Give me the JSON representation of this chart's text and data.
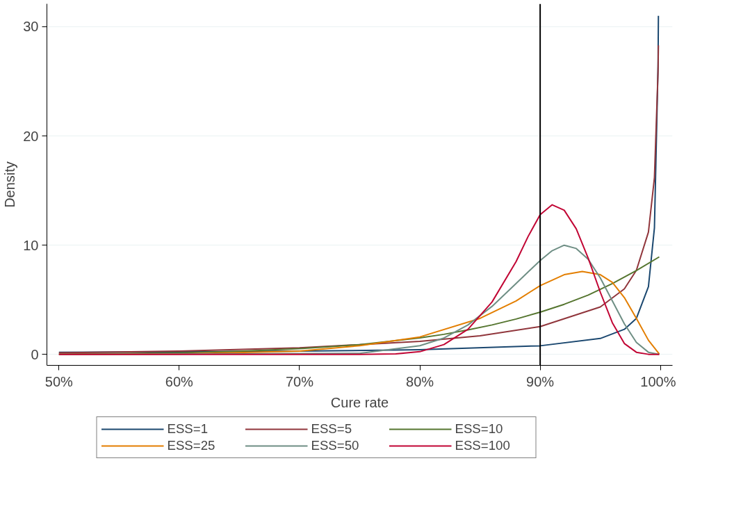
{
  "chart_data": {
    "type": "line",
    "xlabel": "Cure rate",
    "ylabel": "Density",
    "xlim": [
      0.49,
      1.01
    ],
    "ylim": [
      -1,
      32.1
    ],
    "xticks": [
      {
        "value": 0.5,
        "label": "50%"
      },
      {
        "value": 0.6,
        "label": "60%"
      },
      {
        "value": 0.7,
        "label": "70%"
      },
      {
        "value": 0.8,
        "label": "80%"
      },
      {
        "value": 0.9,
        "label": "90%"
      },
      {
        "value": 1.0,
        "label": "100%"
      }
    ],
    "yticks": [
      0,
      10,
      20,
      30
    ],
    "grid": "y",
    "legend": "bottom",
    "ref_lines": [
      {
        "axis": "x",
        "value": 0.9,
        "color": "#000000"
      }
    ],
    "series": [
      {
        "name": "ESS=1",
        "color": "#1a476f",
        "x": [
          0.5,
          0.6,
          0.7,
          0.8,
          0.9,
          0.95,
          0.97,
          0.98,
          0.99,
          0.995,
          0.998,
          0.9983
        ],
        "values": [
          0.2,
          0.24,
          0.3,
          0.43,
          0.79,
          1.46,
          2.3,
          3.3,
          6.2,
          11.6,
          26.4,
          31
        ]
      },
      {
        "name": "ESS=5",
        "color": "#90353b",
        "x": [
          0.5,
          0.6,
          0.7,
          0.8,
          0.85,
          0.9,
          0.95,
          0.97,
          0.98,
          0.99,
          0.995,
          0.998,
          0.9983
        ],
        "values": [
          0.15,
          0.31,
          0.61,
          1.19,
          1.7,
          2.55,
          4.35,
          6.0,
          7.7,
          11.2,
          16.2,
          25.9,
          28.3
        ]
      },
      {
        "name": "ESS=10",
        "color": "#55752f",
        "x": [
          0.5,
          0.55,
          0.6,
          0.65,
          0.7,
          0.75,
          0.8,
          0.82,
          0.84,
          0.86,
          0.88,
          0.9,
          0.92,
          0.94,
          0.96,
          0.98,
          0.999
        ],
        "values": [
          0.04,
          0.08,
          0.15,
          0.29,
          0.52,
          0.9,
          1.51,
          1.84,
          2.24,
          2.7,
          3.24,
          3.87,
          4.59,
          5.44,
          6.49,
          7.68,
          8.93
        ]
      },
      {
        "name": "ESS=25",
        "color": "#e37e00",
        "x": [
          0.5,
          0.6,
          0.7,
          0.75,
          0.8,
          0.85,
          0.88,
          0.9,
          0.92,
          0.935,
          0.95,
          0.96,
          0.97,
          0.98,
          0.99,
          0.999
        ],
        "values": [
          0.0,
          0.03,
          0.3,
          0.8,
          1.6,
          3.3,
          4.9,
          6.3,
          7.3,
          7.6,
          7.3,
          6.6,
          5.2,
          3.3,
          1.3,
          0.05
        ]
      },
      {
        "name": "ESS=50",
        "color": "#6e8e84",
        "x": [
          0.5,
          0.75,
          0.8,
          0.82,
          0.84,
          0.86,
          0.88,
          0.9,
          0.91,
          0.92,
          0.93,
          0.94,
          0.95,
          0.96,
          0.97,
          0.98,
          0.99,
          0.999
        ],
        "values": [
          0.0,
          0.1,
          0.8,
          1.5,
          2.7,
          4.4,
          6.5,
          8.6,
          9.5,
          10.0,
          9.7,
          8.7,
          7.0,
          4.9,
          2.8,
          1.1,
          0.2,
          0.0
        ]
      },
      {
        "name": "ESS=100",
        "color": "#c10534",
        "x": [
          0.5,
          0.75,
          0.78,
          0.8,
          0.82,
          0.84,
          0.86,
          0.88,
          0.89,
          0.9,
          0.91,
          0.92,
          0.93,
          0.94,
          0.95,
          0.96,
          0.97,
          0.98,
          0.99,
          0.999
        ],
        "values": [
          0.0,
          0.0,
          0.05,
          0.25,
          0.9,
          2.3,
          4.8,
          8.5,
          10.8,
          12.8,
          13.7,
          13.2,
          11.5,
          8.8,
          5.7,
          2.9,
          1.0,
          0.2,
          0.01,
          0.0
        ]
      }
    ]
  }
}
